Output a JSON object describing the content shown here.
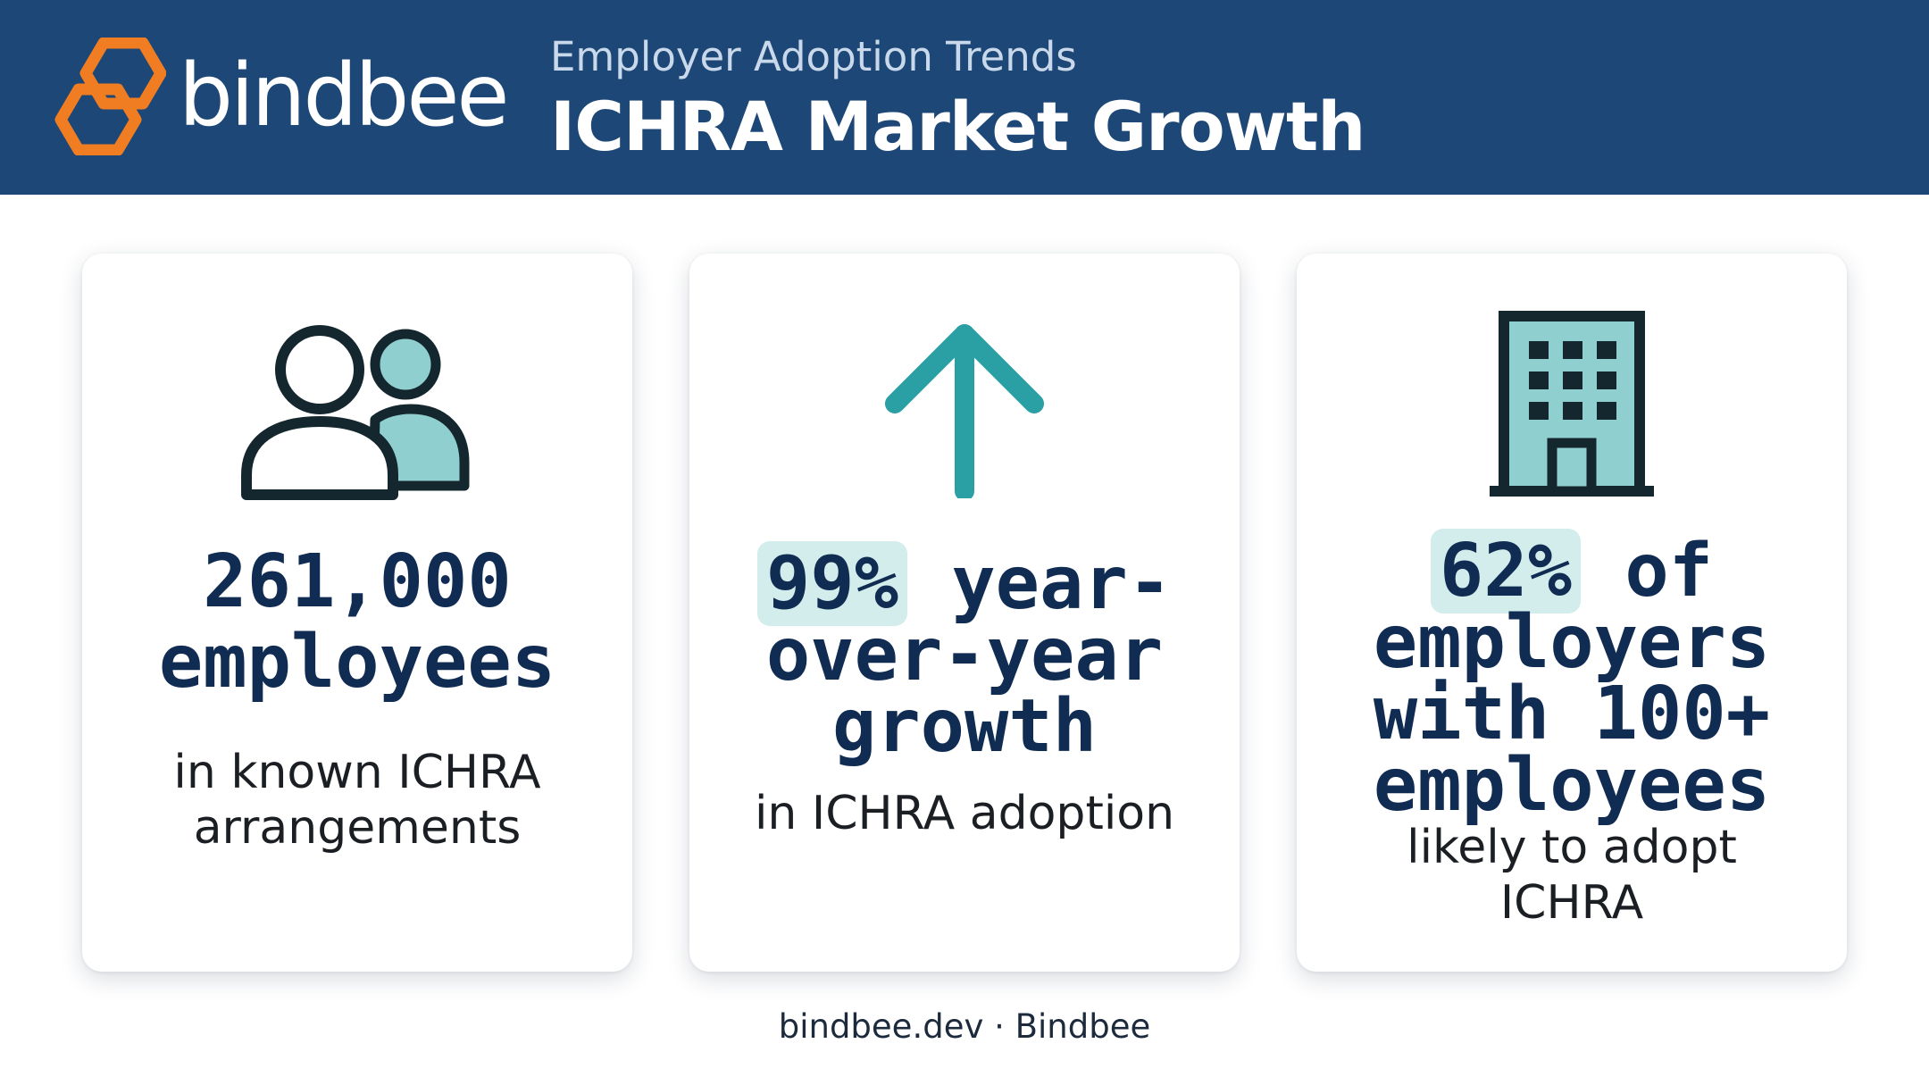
{
  "header": {
    "brand": "bindbee",
    "kicker": "Employer Adoption Trends",
    "title": "ICHRA Market Growth"
  },
  "colors": {
    "header_bg": "#1c4776",
    "logo_orange": "#f07d22",
    "stat_text": "#102c52",
    "highlight": "#d3ecec",
    "icon_teal": "#2a9fa4",
    "icon_dark": "#14262e"
  },
  "cards": [
    {
      "icon": "people-icon",
      "stat_lines": [
        "261,000",
        "employees"
      ],
      "desc_lines": [
        "in known ICHRA",
        "arrangements"
      ]
    },
    {
      "icon": "arrow-up-icon",
      "stat_highlight": "99%",
      "stat_rest": "year-",
      "stat_lines": [
        "over-year",
        "growth"
      ],
      "desc_lines": [
        "in ICHRA adoption"
      ]
    },
    {
      "icon": "building-icon",
      "stat_highlight": "62%",
      "stat_rest": "of",
      "stat_lines": [
        "employers",
        "with 100+",
        "employees"
      ],
      "desc_lines": [
        "likely to adopt",
        "ICHRA"
      ]
    }
  ],
  "footer": "bindbee.dev · Bindbee"
}
